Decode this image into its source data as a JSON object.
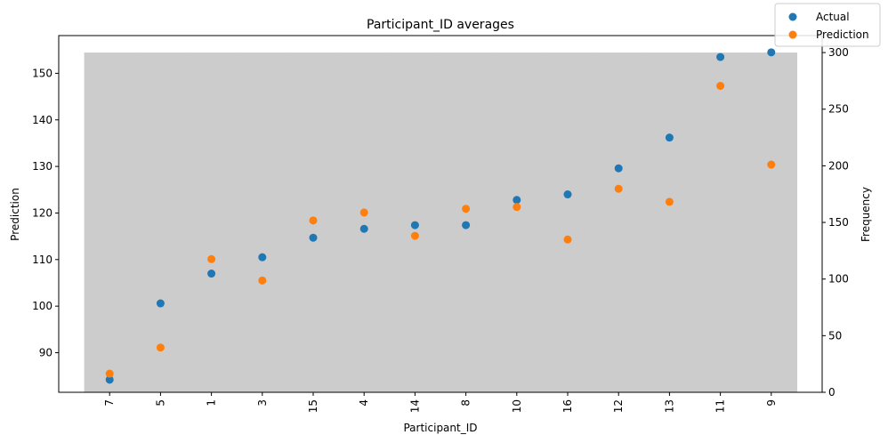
{
  "chart_data": {
    "type": "scatter",
    "title": "Participant_ID averages",
    "xlabel": "Participant_ID",
    "ylabel": "Prediction",
    "y2label": "Frequency",
    "categories": [
      "7",
      "5",
      "1",
      "3",
      "15",
      "4",
      "14",
      "8",
      "10",
      "16",
      "12",
      "13",
      "11",
      "9"
    ],
    "series": [
      {
        "name": "Actual",
        "color": "#1f77b4",
        "values": [
          84.2,
          100.6,
          107.0,
          110.5,
          114.7,
          116.6,
          117.4,
          117.4,
          122.8,
          124.0,
          129.6,
          136.2,
          153.5,
          154.5
        ]
      },
      {
        "name": "Prediction",
        "color": "#ff7f0e",
        "values": [
          85.5,
          91.1,
          110.1,
          105.5,
          118.4,
          120.1,
          115.1,
          120.9,
          121.3,
          114.3,
          125.2,
          122.4,
          147.3,
          130.4
        ]
      }
    ],
    "frequency": {
      "color": "#cccccc",
      "values": [
        300,
        300,
        300,
        300,
        300,
        300,
        300,
        300,
        300,
        300,
        300,
        300,
        300,
        300
      ]
    },
    "ylim": [
      81.5,
      158.1
    ],
    "yticks": [
      90,
      100,
      110,
      120,
      130,
      140,
      150
    ],
    "y2lim": [
      0,
      315
    ],
    "y2ticks": [
      0,
      50,
      100,
      150,
      200,
      250,
      300
    ],
    "legend": "top-right",
    "grid": false
  }
}
